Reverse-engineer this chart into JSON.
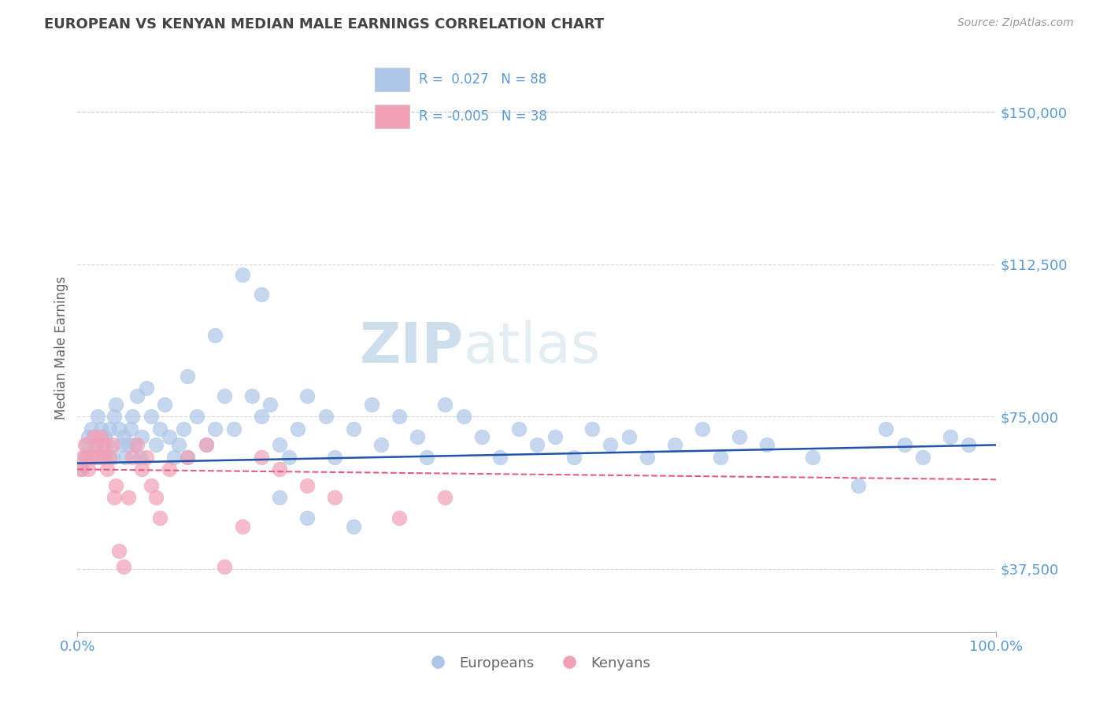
{
  "title": "EUROPEAN VS KENYAN MEDIAN MALE EARNINGS CORRELATION CHART",
  "source_text": "Source: ZipAtlas.com",
  "ylabel": "Median Male Earnings",
  "xlim": [
    0,
    1
  ],
  "ylim": [
    22000,
    162000
  ],
  "yticks": [
    37500,
    75000,
    112500,
    150000
  ],
  "ytick_labels": [
    "$37,500",
    "$75,000",
    "$112,500",
    "$150,000"
  ],
  "xtick_labels": [
    "0.0%",
    "100.0%"
  ],
  "background_color": "#ffffff",
  "grid_color": "#c8c8c8",
  "title_color": "#444444",
  "axis_label_color": "#666666",
  "tick_color": "#5b9bd5",
  "europeans_color": "#adc6e8",
  "kenyans_color": "#f2a0b5",
  "europeans_line_color": "#2255aa",
  "kenyans_line_color": "#e06080",
  "legend_euro_label": "R =  0.027   N = 88",
  "legend_kenya_label": "R = -0.005   N = 38",
  "watermark_zip": "ZIP",
  "watermark_atlas": "atlas",
  "europeans_x": [
    0.005,
    0.008,
    0.01,
    0.012,
    0.015,
    0.018,
    0.02,
    0.022,
    0.025,
    0.028,
    0.03,
    0.032,
    0.035,
    0.038,
    0.04,
    0.042,
    0.045,
    0.048,
    0.05,
    0.052,
    0.055,
    0.058,
    0.06,
    0.062,
    0.065,
    0.068,
    0.07,
    0.075,
    0.08,
    0.085,
    0.09,
    0.095,
    0.1,
    0.105,
    0.11,
    0.115,
    0.12,
    0.13,
    0.14,
    0.15,
    0.16,
    0.17,
    0.18,
    0.19,
    0.2,
    0.21,
    0.22,
    0.23,
    0.24,
    0.25,
    0.27,
    0.28,
    0.3,
    0.32,
    0.33,
    0.35,
    0.37,
    0.38,
    0.4,
    0.42,
    0.44,
    0.46,
    0.48,
    0.5,
    0.52,
    0.54,
    0.56,
    0.58,
    0.6,
    0.62,
    0.65,
    0.68,
    0.7,
    0.72,
    0.75,
    0.8,
    0.85,
    0.88,
    0.9,
    0.92,
    0.95,
    0.97,
    0.25,
    0.3,
    0.2,
    0.15,
    0.12,
    0.22
  ],
  "europeans_y": [
    62000,
    65000,
    68000,
    70000,
    72000,
    65000,
    68000,
    75000,
    72000,
    65000,
    70000,
    68000,
    72000,
    65000,
    75000,
    78000,
    72000,
    68000,
    70000,
    65000,
    68000,
    72000,
    75000,
    68000,
    80000,
    65000,
    70000,
    82000,
    75000,
    68000,
    72000,
    78000,
    70000,
    65000,
    68000,
    72000,
    85000,
    75000,
    68000,
    95000,
    80000,
    72000,
    110000,
    80000,
    75000,
    78000,
    68000,
    65000,
    72000,
    80000,
    75000,
    65000,
    72000,
    78000,
    68000,
    75000,
    70000,
    65000,
    78000,
    75000,
    70000,
    65000,
    72000,
    68000,
    70000,
    65000,
    72000,
    68000,
    70000,
    65000,
    68000,
    72000,
    65000,
    70000,
    68000,
    65000,
    58000,
    72000,
    68000,
    65000,
    70000,
    68000,
    50000,
    48000,
    105000,
    72000,
    65000,
    55000
  ],
  "kenyans_x": [
    0.003,
    0.006,
    0.008,
    0.01,
    0.012,
    0.015,
    0.018,
    0.02,
    0.022,
    0.025,
    0.028,
    0.03,
    0.032,
    0.035,
    0.038,
    0.04,
    0.042,
    0.045,
    0.05,
    0.055,
    0.06,
    0.065,
    0.07,
    0.075,
    0.08,
    0.085,
    0.09,
    0.1,
    0.12,
    0.14,
    0.16,
    0.18,
    0.2,
    0.22,
    0.25,
    0.28,
    0.35,
    0.4
  ],
  "kenyans_y": [
    62000,
    65000,
    68000,
    65000,
    62000,
    65000,
    70000,
    68000,
    65000,
    70000,
    68000,
    65000,
    62000,
    65000,
    68000,
    55000,
    58000,
    42000,
    38000,
    55000,
    65000,
    68000,
    62000,
    65000,
    58000,
    55000,
    50000,
    62000,
    65000,
    68000,
    38000,
    48000,
    65000,
    62000,
    58000,
    55000,
    50000,
    55000
  ],
  "euro_trend_x": [
    0.0,
    1.0
  ],
  "euro_trend_y": [
    63500,
    68000
  ],
  "kenya_trend_x": [
    0.0,
    1.0
  ],
  "kenya_trend_y": [
    62000,
    59500
  ]
}
